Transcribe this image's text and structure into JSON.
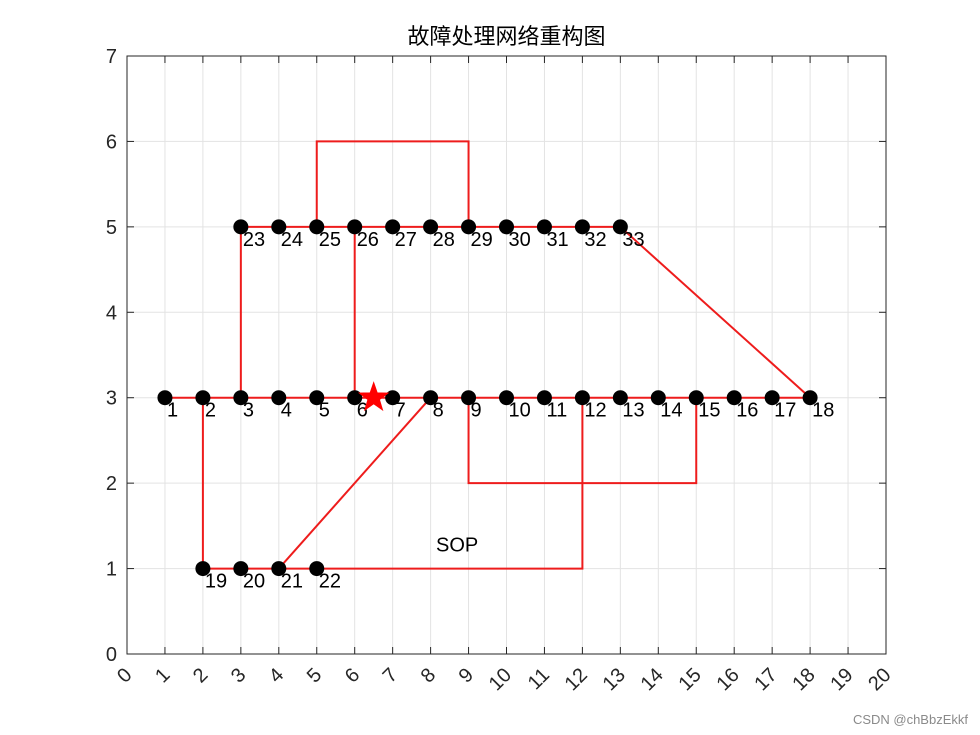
{
  "chart_data": {
    "type": "scatter",
    "title": "故障处理网络重构图",
    "xlim": [
      0,
      20
    ],
    "ylim": [
      0,
      7
    ],
    "xticks": [
      "0",
      "1",
      "2",
      "3",
      "4",
      "5",
      "6",
      "7",
      "8",
      "9",
      "10",
      "11",
      "12",
      "13",
      "14",
      "15",
      "16",
      "17",
      "18",
      "19",
      "20"
    ],
    "yticks": [
      "0",
      "1",
      "2",
      "3",
      "4",
      "5",
      "6",
      "7"
    ],
    "grid": true,
    "nodes": [
      {
        "id": "1",
        "x": 1,
        "y": 3
      },
      {
        "id": "2",
        "x": 2,
        "y": 3
      },
      {
        "id": "3",
        "x": 3,
        "y": 3
      },
      {
        "id": "4",
        "x": 4,
        "y": 3
      },
      {
        "id": "5",
        "x": 5,
        "y": 3
      },
      {
        "id": "6",
        "x": 6,
        "y": 3
      },
      {
        "id": "7",
        "x": 7,
        "y": 3
      },
      {
        "id": "8",
        "x": 8,
        "y": 3
      },
      {
        "id": "9",
        "x": 9,
        "y": 3
      },
      {
        "id": "10",
        "x": 10,
        "y": 3
      },
      {
        "id": "11",
        "x": 11,
        "y": 3
      },
      {
        "id": "12",
        "x": 12,
        "y": 3
      },
      {
        "id": "13",
        "x": 13,
        "y": 3
      },
      {
        "id": "14",
        "x": 14,
        "y": 3
      },
      {
        "id": "15",
        "x": 15,
        "y": 3
      },
      {
        "id": "16",
        "x": 16,
        "y": 3
      },
      {
        "id": "17",
        "x": 17,
        "y": 3
      },
      {
        "id": "18",
        "x": 18,
        "y": 3
      },
      {
        "id": "19",
        "x": 2,
        "y": 1
      },
      {
        "id": "20",
        "x": 3,
        "y": 1
      },
      {
        "id": "21",
        "x": 4,
        "y": 1
      },
      {
        "id": "22",
        "x": 5,
        "y": 1
      },
      {
        "id": "23",
        "x": 3,
        "y": 5
      },
      {
        "id": "24",
        "x": 4,
        "y": 5
      },
      {
        "id": "25",
        "x": 5,
        "y": 5
      },
      {
        "id": "26",
        "x": 6,
        "y": 5
      },
      {
        "id": "27",
        "x": 7,
        "y": 5
      },
      {
        "id": "28",
        "x": 8,
        "y": 5
      },
      {
        "id": "29",
        "x": 9,
        "y": 5
      },
      {
        "id": "30",
        "x": 10,
        "y": 5
      },
      {
        "id": "31",
        "x": 11,
        "y": 5
      },
      {
        "id": "32",
        "x": 12,
        "y": 5
      },
      {
        "id": "33",
        "x": 13,
        "y": 5
      }
    ],
    "lines": [
      {
        "name": "main-feeder",
        "points": [
          [
            1,
            3
          ],
          [
            18,
            3
          ]
        ]
      },
      {
        "name": "branch-2-19",
        "points": [
          [
            2,
            3
          ],
          [
            2,
            1
          ]
        ]
      },
      {
        "name": "branch-lower-feeder",
        "points": [
          [
            2,
            1
          ],
          [
            5,
            1
          ]
        ]
      },
      {
        "name": "branch-3-23",
        "points": [
          [
            3,
            3
          ],
          [
            3,
            5
          ]
        ]
      },
      {
        "name": "upper-feeder-left",
        "points": [
          [
            3,
            5
          ],
          [
            6,
            5
          ]
        ]
      },
      {
        "name": "branch-6-26",
        "points": [
          [
            6,
            3
          ],
          [
            6,
            5
          ]
        ]
      },
      {
        "name": "upper-feeder-right",
        "points": [
          [
            6,
            5
          ],
          [
            13,
            5
          ]
        ]
      },
      {
        "name": "tie-33-18",
        "points": [
          [
            13,
            5
          ],
          [
            18,
            3
          ]
        ]
      },
      {
        "name": "tie-25-29",
        "points": [
          [
            5,
            5
          ],
          [
            5,
            6
          ],
          [
            9,
            6
          ],
          [
            9,
            5
          ]
        ]
      },
      {
        "name": "tie-9-15",
        "points": [
          [
            9,
            3
          ],
          [
            9,
            2
          ],
          [
            15,
            2
          ],
          [
            15,
            3
          ]
        ]
      },
      {
        "name": "tie-21-8",
        "points": [
          [
            4,
            1
          ],
          [
            8,
            3
          ]
        ]
      },
      {
        "name": "tie-22-12-sop",
        "points": [
          [
            5,
            1
          ],
          [
            12,
            1
          ],
          [
            12,
            3
          ]
        ]
      }
    ],
    "fault_marker": {
      "symbol": "star",
      "x": 6.5,
      "y": 3,
      "color": "#ff0000"
    },
    "annotations": [
      {
        "text": "SOP",
        "x": 8.7,
        "y": 1.2
      }
    ],
    "colors": {
      "line": "#ee1c1c",
      "node": "#000000",
      "grid": "#e3e3e3",
      "axis": "#262626"
    }
  },
  "watermark": "CSDN @chBbzEkkf"
}
